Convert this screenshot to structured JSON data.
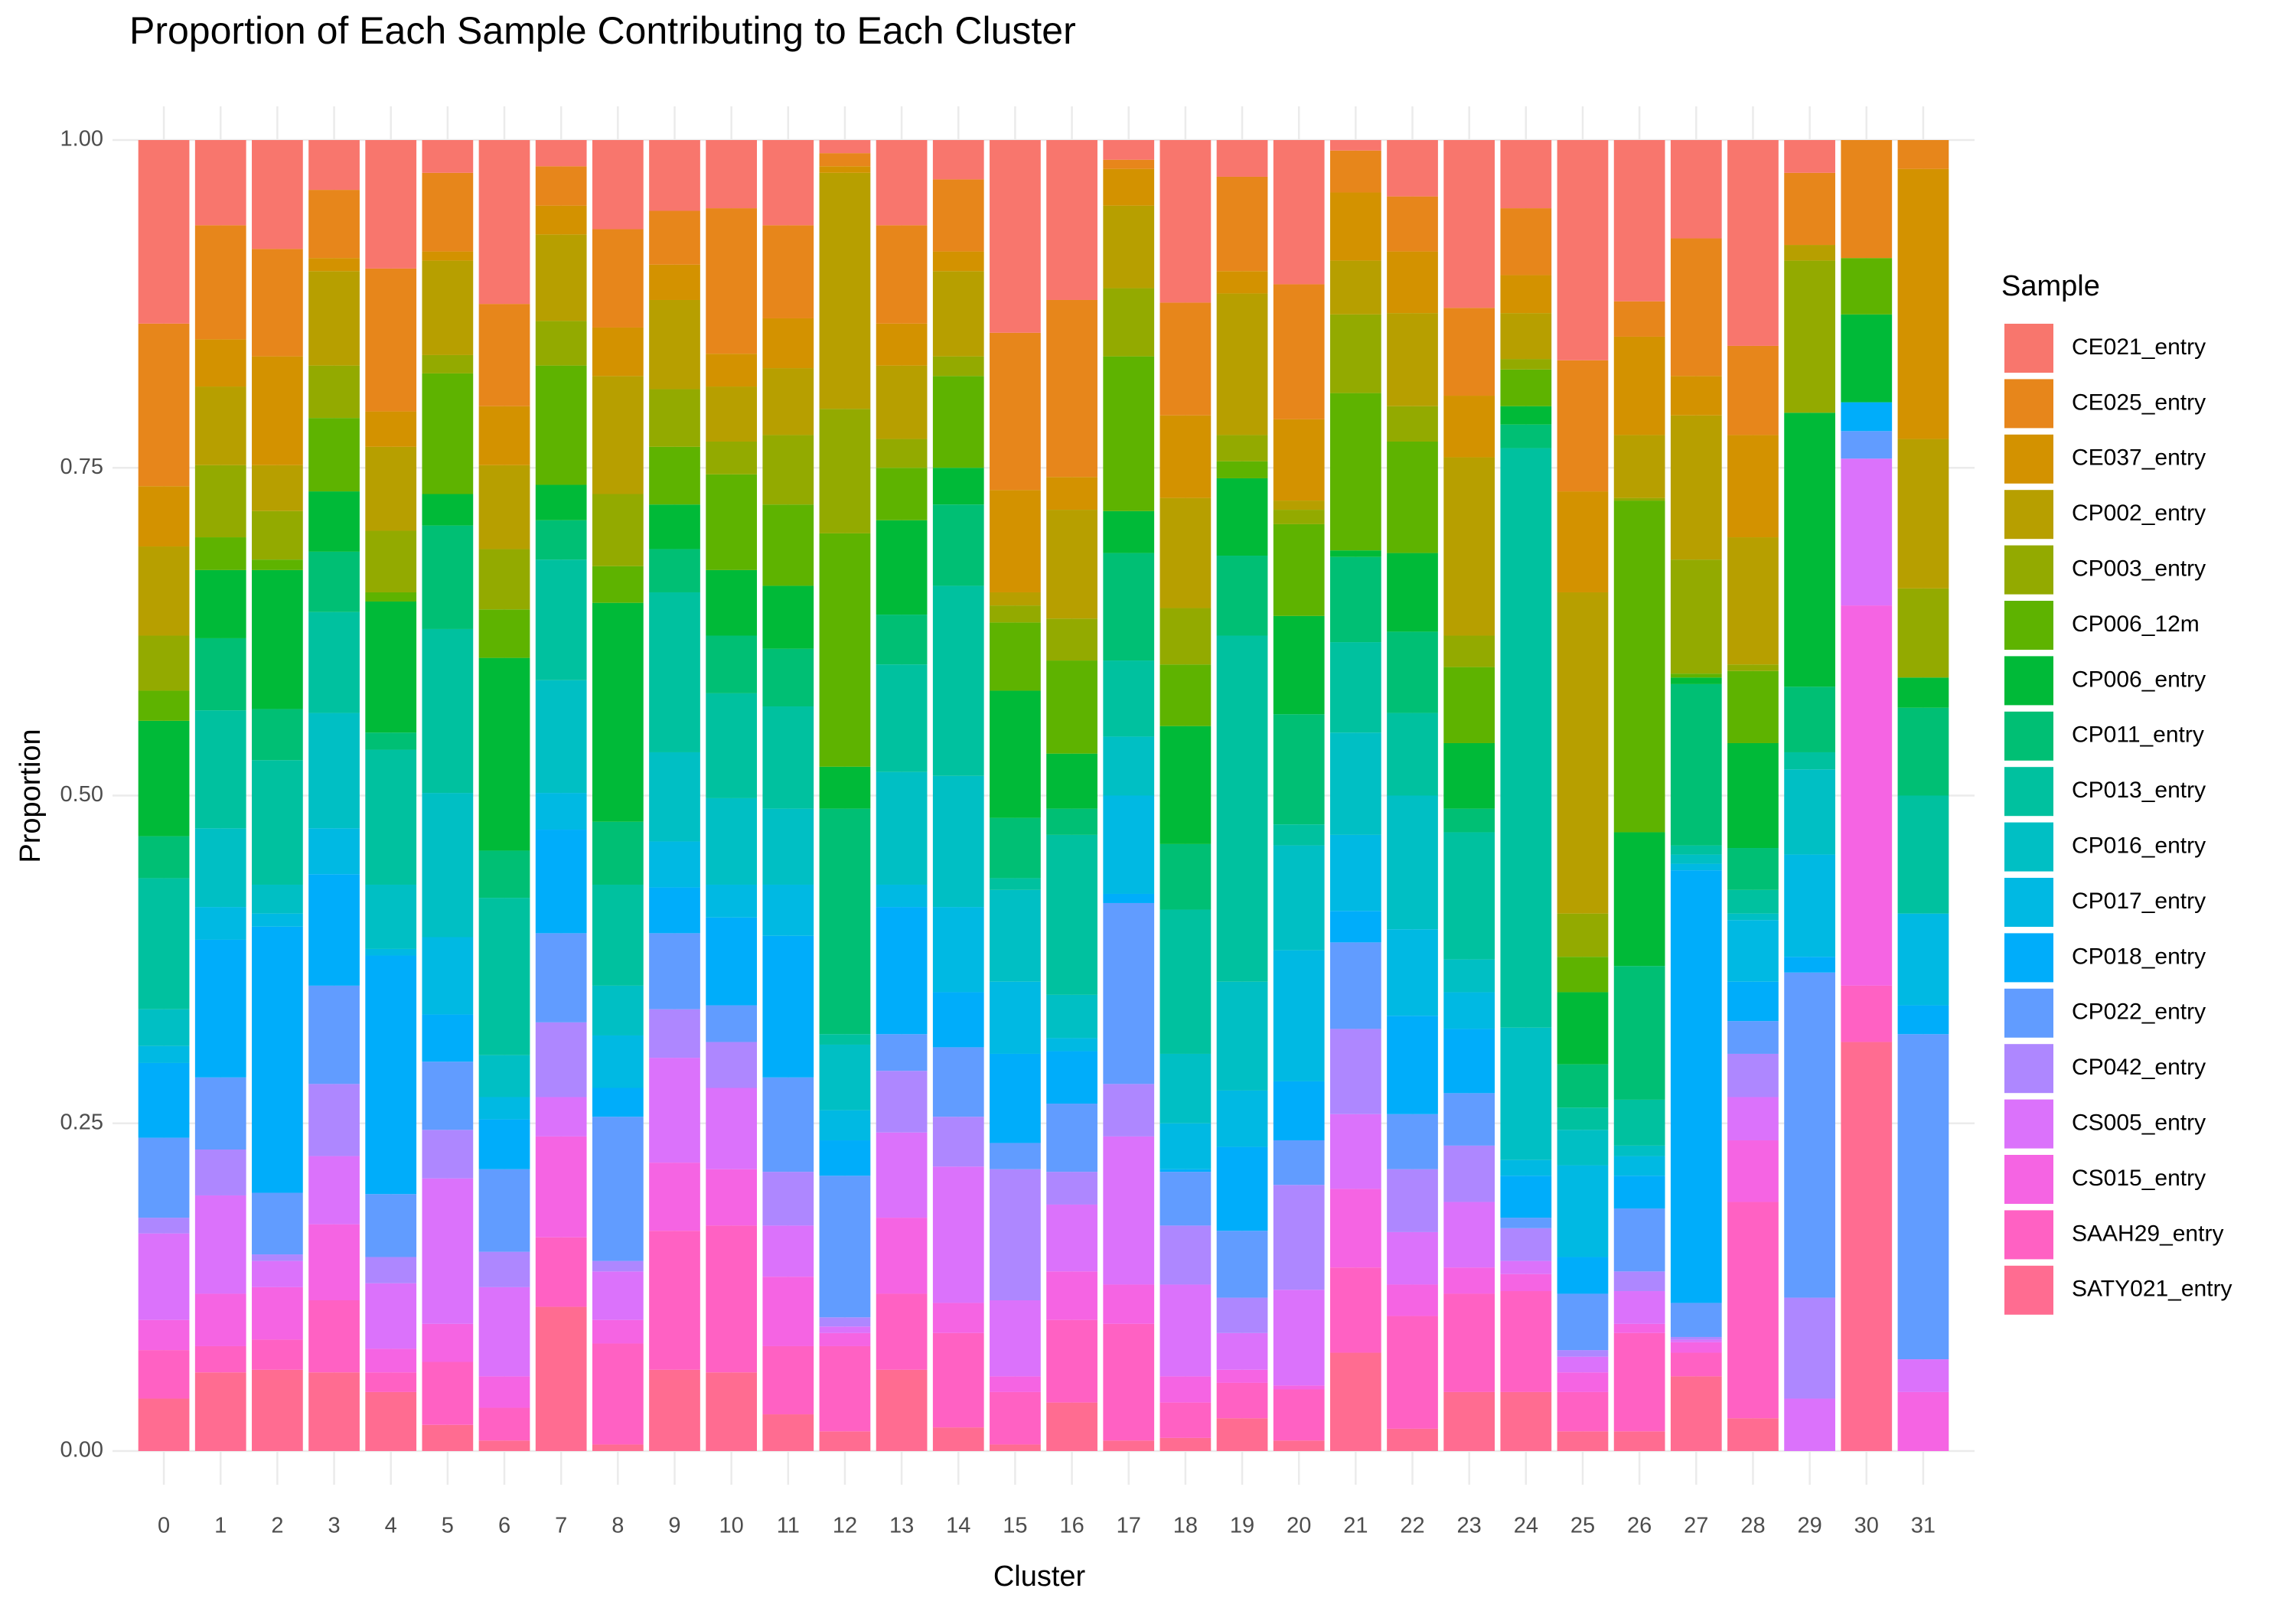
{
  "chart_data": {
    "type": "stacked_bar",
    "title": "Proportion of Each Sample Contributing to Each Cluster",
    "x_label": "Cluster",
    "y_label": "Proportion",
    "legend_title": "Sample",
    "legend_position": "right",
    "grid": true,
    "categories": [
      "0",
      "1",
      "2",
      "3",
      "4",
      "5",
      "6",
      "7",
      "8",
      "9",
      "10",
      "11",
      "12",
      "13",
      "14",
      "15",
      "16",
      "17",
      "18",
      "19",
      "20",
      "21",
      "22",
      "23",
      "24",
      "25",
      "26",
      "27",
      "28",
      "29",
      "30",
      "31"
    ],
    "ylim": [
      0,
      1
    ],
    "yticks": [
      {
        "value": 0,
        "label": "0.00"
      },
      {
        "value": 0.25,
        "label": "0.25"
      },
      {
        "value": 0.5,
        "label": "0.50"
      },
      {
        "value": 0.75,
        "label": "0.75"
      },
      {
        "value": 1,
        "label": "1.00"
      }
    ],
    "series": [
      {
        "name": "CE021_entry",
        "color": "#F8766D",
        "values": [
          0.14,
          0.065,
          0.083,
          0.038,
          0.098,
          0.025,
          0.125,
          0.02,
          0.068,
          0.054,
          0.052,
          0.065,
          0.01,
          0.065,
          0.03,
          0.147,
          0.122,
          0.015,
          0.124,
          0.028,
          0.11,
          0.008,
          0.043,
          0.128,
          0.052,
          0.168,
          0.123,
          0.075,
          0.157,
          0.025,
          0,
          0
        ]
      },
      {
        "name": "CE025_entry",
        "color": "#E7861B",
        "values": [
          0.124,
          0.087,
          0.082,
          0.052,
          0.109,
          0.06,
          0.078,
          0.03,
          0.075,
          0.041,
          0.111,
          0.071,
          0.01,
          0.075,
          0.055,
          0.12,
          0.135,
          0.007,
          0.086,
          0.072,
          0.103,
          0.032,
          0.042,
          0.067,
          0.051,
          0.1,
          0.027,
          0.105,
          0.068,
          0.055,
          0.09,
          0.022
        ]
      },
      {
        "name": "CE037_entry",
        "color": "#D39200",
        "values": [
          0.046,
          0.036,
          0.083,
          0.01,
          0.027,
          0.007,
          0.045,
          0.022,
          0.037,
          0.027,
          0.025,
          0.038,
          0.005,
          0.032,
          0.015,
          0.078,
          0.025,
          0.028,
          0.063,
          0.017,
          0.062,
          0.052,
          0.047,
          0.047,
          0.029,
          0.077,
          0.075,
          0.03,
          0.078,
          0,
          0,
          0.206
        ]
      },
      {
        "name": "CP002_entry",
        "color": "#B79F00",
        "values": [
          0.068,
          0.06,
          0.035,
          0.072,
          0.064,
          0.072,
          0.064,
          0.066,
          0.09,
          0.068,
          0.042,
          0.051,
          0.18,
          0.056,
          0.065,
          0.01,
          0.083,
          0.063,
          0.084,
          0.108,
          0.007,
          0.041,
          0.071,
          0.136,
          0.035,
          0.245,
          0.048,
          0.11,
          0.097,
          0.012,
          0,
          0.114
        ]
      },
      {
        "name": "CP003_entry",
        "color": "#93AA00",
        "values": [
          0.042,
          0.055,
          0.037,
          0.04,
          0.047,
          0.014,
          0.046,
          0.034,
          0.055,
          0.044,
          0.025,
          0.053,
          0.095,
          0.022,
          0.015,
          0.013,
          0.032,
          0.052,
          0.043,
          0.02,
          0.011,
          0.06,
          0.027,
          0.024,
          0.008,
          0.033,
          0.002,
          0.087,
          0.005,
          0.116,
          0,
          0.068
        ]
      },
      {
        "name": "CP006_12m",
        "color": "#5EB300",
        "values": [
          0.023,
          0.025,
          0.008,
          0.056,
          0.007,
          0.092,
          0.037,
          0.091,
          0.028,
          0.044,
          0.073,
          0.062,
          0.178,
          0.04,
          0.07,
          0.052,
          0.071,
          0.118,
          0.047,
          0.013,
          0.07,
          0.12,
          0.085,
          0.058,
          0.028,
          0.027,
          0.253,
          0.003,
          0.055,
          0,
          0.043,
          0
        ]
      },
      {
        "name": "CP006_entry",
        "color": "#00BA38",
        "values": [
          0.088,
          0.052,
          0.106,
          0.046,
          0.1,
          0.024,
          0.147,
          0.027,
          0.167,
          0.034,
          0.05,
          0.048,
          0.032,
          0.072,
          0.028,
          0.097,
          0.042,
          0.032,
          0.09,
          0.059,
          0.075,
          0.005,
          0.06,
          0.05,
          0.014,
          0.055,
          0.102,
          0.005,
          0.08,
          0.209,
          0.067,
          0.023
        ]
      },
      {
        "name": "CP011_entry",
        "color": "#00BF74",
        "values": [
          0.032,
          0.055,
          0.039,
          0.046,
          0.013,
          0.079,
          0.036,
          0.03,
          0.048,
          0.033,
          0.044,
          0.044,
          0.172,
          0.038,
          0.062,
          0.046,
          0.02,
          0.082,
          0.05,
          0.061,
          0.084,
          0.065,
          0.062,
          0.018,
          0.018,
          0.033,
          0.102,
          0.123,
          0.032,
          0.05,
          0,
          0.067
        ]
      },
      {
        "name": "CP013_entry",
        "color": "#00C19F",
        "values": [
          0.1,
          0.09,
          0.095,
          0.077,
          0.103,
          0.125,
          0.12,
          0.092,
          0.077,
          0.122,
          0.08,
          0.078,
          0.008,
          0.082,
          0.145,
          0.009,
          0.122,
          0.058,
          0.11,
          0.264,
          0.016,
          0.069,
          0.063,
          0.097,
          0.442,
          0.017,
          0.035,
          0.007,
          0.018,
          0.013,
          0,
          0.09
        ]
      },
      {
        "name": "CP016_entry",
        "color": "#00BFC4",
        "values": [
          0.028,
          0.06,
          0.022,
          0.088,
          0.049,
          0.11,
          0.032,
          0.086,
          0.038,
          0.068,
          0.066,
          0.058,
          0.05,
          0.086,
          0.1,
          0.07,
          0.033,
          0.045,
          0.053,
          0.083,
          0.08,
          0.078,
          0.102,
          0.025,
          0.101,
          0.027,
          0.008,
          0.007,
          0.005,
          0.065,
          0,
          0
        ]
      },
      {
        "name": "CP017_entry",
        "color": "#00B9E3",
        "values": [
          0.013,
          0.025,
          0.01,
          0.035,
          0.005,
          0.059,
          0.017,
          0.028,
          0.04,
          0.035,
          0.025,
          0.039,
          0.023,
          0.017,
          0.065,
          0.055,
          0.01,
          0.075,
          0.035,
          0.043,
          0.1,
          0.058,
          0.066,
          0.028,
          0.012,
          0.07,
          0.015,
          0.005,
          0.047,
          0.078,
          0,
          0.07
        ]
      },
      {
        "name": "CP018_entry",
        "color": "#00ADFA",
        "values": [
          0.057,
          0.105,
          0.203,
          0.085,
          0.182,
          0.036,
          0.038,
          0.079,
          0.022,
          0.035,
          0.067,
          0.108,
          0.027,
          0.097,
          0.042,
          0.068,
          0.04,
          0.007,
          0.002,
          0.064,
          0.045,
          0.024,
          0.075,
          0.049,
          0.032,
          0.028,
          0.025,
          0.33,
          0.03,
          0.012,
          0.022,
          0.022
        ]
      },
      {
        "name": "CP022_entry",
        "color": "#619CFF",
        "values": [
          0.061,
          0.055,
          0.047,
          0.075,
          0.048,
          0.052,
          0.063,
          0.068,
          0.11,
          0.058,
          0.028,
          0.072,
          0.108,
          0.028,
          0.053,
          0.02,
          0.052,
          0.138,
          0.041,
          0.051,
          0.034,
          0.066,
          0.042,
          0.04,
          0.008,
          0.043,
          0.048,
          0.026,
          0.025,
          0.248,
          0.021,
          0.248
        ]
      },
      {
        "name": "CP042_entry",
        "color": "#AE87FF",
        "values": [
          0.012,
          0.035,
          0.005,
          0.055,
          0.02,
          0.037,
          0.027,
          0.057,
          0.008,
          0.037,
          0.035,
          0.041,
          0.007,
          0.047,
          0.038,
          0.1,
          0.025,
          0.04,
          0.045,
          0.027,
          0.08,
          0.065,
          0.048,
          0.043,
          0.025,
          0.005,
          0.015,
          0.002,
          0.033,
          0.077,
          0,
          0
        ]
      },
      {
        "name": "CS005_entry",
        "color": "#DB72FB",
        "values": [
          0.066,
          0.075,
          0.02,
          0.052,
          0.05,
          0.111,
          0.068,
          0.03,
          0.037,
          0.08,
          0.062,
          0.039,
          0.005,
          0.065,
          0.104,
          0.058,
          0.051,
          0.113,
          0.07,
          0.028,
          0.073,
          0.057,
          0.04,
          0.05,
          0.01,
          0.012,
          0.025,
          0.002,
          0.033,
          0.04,
          0.112,
          0.025
        ]
      },
      {
        "name": "CS015_entry",
        "color": "#F564E3",
        "values": [
          0.023,
          0.04,
          0.04,
          0.058,
          0.018,
          0.029,
          0.024,
          0.077,
          0.018,
          0.052,
          0.043,
          0.053,
          0.01,
          0.058,
          0.023,
          0.012,
          0.037,
          0.03,
          0.02,
          0.01,
          0.003,
          0.06,
          0.024,
          0.02,
          0.013,
          0.015,
          0.007,
          0.008,
          0.047,
          0,
          0.29,
          0.045
        ]
      },
      {
        "name": "SAAH29_entry",
        "color": "#FF61C3",
        "values": [
          0.037,
          0.02,
          0.023,
          0.055,
          0.015,
          0.048,
          0.025,
          0.053,
          0.077,
          0.106,
          0.112,
          0.052,
          0.065,
          0.058,
          0.072,
          0.04,
          0.063,
          0.089,
          0.027,
          0.027,
          0.039,
          0.065,
          0.086,
          0.075,
          0.077,
          0.03,
          0.075,
          0.018,
          0.165,
          0,
          0.043,
          0
        ]
      },
      {
        "name": "SATY021_entry",
        "color": "#FF6C91",
        "values": [
          0.04,
          0.06,
          0.062,
          0.06,
          0.045,
          0.02,
          0.008,
          0.11,
          0.005,
          0.062,
          0.06,
          0.028,
          0.015,
          0.062,
          0.018,
          0.005,
          0.037,
          0.008,
          0.01,
          0.025,
          0.008,
          0.075,
          0.017,
          0.045,
          0.045,
          0.015,
          0.015,
          0.057,
          0.025,
          0,
          0.312,
          0
        ]
      }
    ]
  }
}
